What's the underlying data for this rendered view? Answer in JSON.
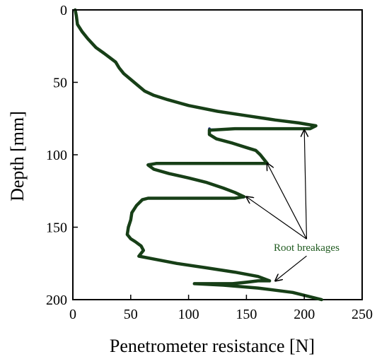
{
  "chart_data": {
    "type": "line",
    "xlabel": "Penetrometer resistance [N]",
    "ylabel": "Depth [mm]",
    "xlim": [
      0,
      250
    ],
    "ylim": [
      0,
      200
    ],
    "y_inverted": true,
    "x_ticks": [
      0,
      50,
      100,
      150,
      200,
      250
    ],
    "y_ticks": [
      0,
      50,
      100,
      150,
      200
    ],
    "grid": false,
    "colors": {
      "profile": "#173f17",
      "breakage_line": "#8f9ff0",
      "annotation": "#1f5a1f"
    },
    "series": [
      {
        "points": [
          [
            2,
            0
          ],
          [
            3,
            4
          ],
          [
            4,
            10
          ],
          [
            8,
            15
          ],
          [
            13,
            20
          ],
          [
            20,
            26
          ],
          [
            27,
            30
          ],
          [
            32,
            33
          ],
          [
            37,
            36
          ],
          [
            40,
            40
          ],
          [
            44,
            44
          ],
          [
            50,
            48
          ],
          [
            56,
            52
          ],
          [
            62,
            56
          ],
          [
            70,
            59
          ],
          [
            82,
            62
          ],
          [
            100,
            66
          ],
          [
            125,
            70
          ],
          [
            150,
            73
          ],
          [
            175,
            76
          ],
          [
            195,
            78
          ],
          [
            210,
            80
          ],
          [
            205,
            82
          ],
          [
            170,
            82
          ],
          [
            140,
            82
          ],
          [
            118,
            83
          ],
          [
            118,
            86
          ],
          [
            124,
            89
          ],
          [
            138,
            92
          ],
          [
            150,
            95
          ],
          [
            158,
            97
          ],
          [
            162,
            100
          ],
          [
            165,
            103
          ],
          [
            168,
            106
          ],
          [
            158,
            106
          ],
          [
            130,
            106
          ],
          [
            100,
            106
          ],
          [
            72,
            106
          ],
          [
            65,
            107
          ],
          [
            70,
            110
          ],
          [
            83,
            113
          ],
          [
            100,
            116
          ],
          [
            115,
            119
          ],
          [
            130,
            123
          ],
          [
            140,
            126
          ],
          [
            148,
            129
          ],
          [
            140,
            130
          ],
          [
            120,
            130
          ],
          [
            100,
            130
          ],
          [
            80,
            130
          ],
          [
            65,
            130
          ],
          [
            60,
            131
          ],
          [
            55,
            135
          ],
          [
            51,
            140
          ],
          [
            50,
            145
          ],
          [
            48,
            150
          ],
          [
            47,
            155
          ],
          [
            50,
            158
          ],
          [
            54,
            160
          ],
          [
            59,
            163
          ],
          [
            61,
            166
          ],
          [
            57,
            170
          ],
          [
            70,
            172
          ],
          [
            90,
            175
          ],
          [
            115,
            178
          ],
          [
            140,
            181
          ],
          [
            160,
            184
          ],
          [
            170,
            187
          ],
          [
            160,
            187
          ],
          [
            150,
            188
          ],
          [
            138,
            189
          ],
          [
            120,
            189
          ],
          [
            105,
            189
          ],
          [
            130,
            190
          ],
          [
            160,
            192
          ],
          [
            190,
            195
          ],
          [
            215,
            200
          ]
        ]
      }
    ],
    "breakage_segments": [
      {
        "depth": 82,
        "x_from": 118,
        "x_to": 205,
        "dots": [
          118,
          149
        ]
      },
      {
        "depth": 106,
        "x_from": 65,
        "x_to": 168,
        "dots": [
          75
        ]
      },
      {
        "depth": 130,
        "x_from": 65,
        "x_to": 148,
        "dots": []
      },
      {
        "depth": 189,
        "x_from": 105,
        "x_to": 138,
        "dots": []
      }
    ],
    "annotation": {
      "text": "Root breakages",
      "label_at": [
        202,
        164
      ],
      "arrows_to": [
        [
          200,
          83
        ],
        [
          168,
          106
        ],
        [
          150,
          129
        ],
        [
          175,
          187
        ]
      ]
    }
  }
}
